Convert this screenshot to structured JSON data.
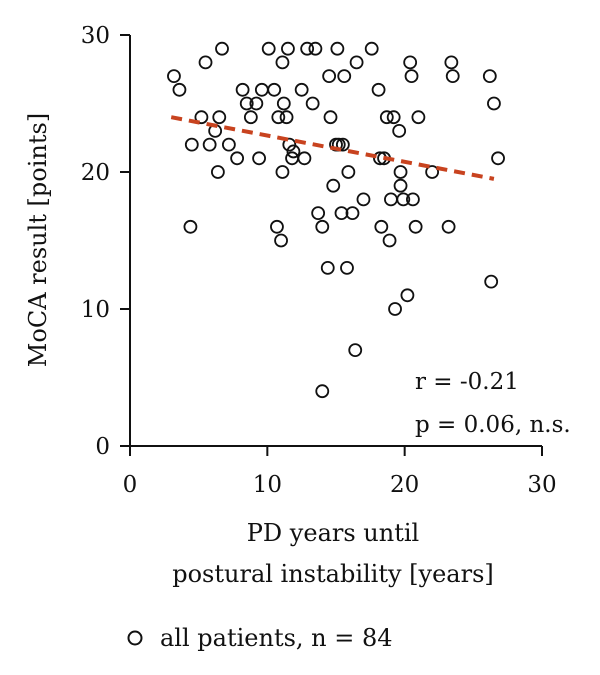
{
  "chart_data": {
    "type": "scatter",
    "title": "",
    "xlabel_lines": [
      "PD years until",
      "postural instability [years]"
    ],
    "ylabel": "MoCA result [points]",
    "xlim": [
      0,
      30
    ],
    "ylim": [
      0,
      30
    ],
    "xticks": [
      0,
      10,
      20,
      30
    ],
    "yticks": [
      0,
      10,
      20,
      30
    ],
    "grid": false,
    "legend": {
      "position": "bottom-left",
      "label": "all patients, n = 84"
    },
    "annotations": {
      "r": "r = -0.21",
      "p": "p = 0.06, n.s."
    },
    "trendline": {
      "x": [
        3,
        26.5
      ],
      "y": [
        24,
        19.5
      ],
      "color": "#c8431f",
      "style": "dashed"
    },
    "marker_color": "#111111",
    "series": [
      {
        "points": [
          [
            3.2,
            27
          ],
          [
            3.6,
            26
          ],
          [
            4.5,
            22
          ],
          [
            4.4,
            16
          ],
          [
            5.2,
            24
          ],
          [
            5.5,
            28
          ],
          [
            5.8,
            22
          ],
          [
            6.2,
            23
          ],
          [
            6.4,
            20
          ],
          [
            6.5,
            24
          ],
          [
            6.7,
            29
          ],
          [
            7.2,
            22
          ],
          [
            7.8,
            21
          ],
          [
            8.2,
            26
          ],
          [
            8.5,
            25
          ],
          [
            8.8,
            24
          ],
          [
            9.2,
            25
          ],
          [
            9.4,
            21
          ],
          [
            9.6,
            26
          ],
          [
            10.1,
            29
          ],
          [
            10.5,
            26
          ],
          [
            10.8,
            24
          ],
          [
            10.7,
            16
          ],
          [
            11.0,
            15
          ],
          [
            11.1,
            20
          ],
          [
            11.1,
            28
          ],
          [
            11.2,
            25
          ],
          [
            11.4,
            24
          ],
          [
            11.5,
            29
          ],
          [
            11.6,
            22
          ],
          [
            11.8,
            21
          ],
          [
            11.9,
            21.5
          ],
          [
            12.5,
            26
          ],
          [
            12.7,
            21
          ],
          [
            12.9,
            29
          ],
          [
            13.3,
            25
          ],
          [
            13.5,
            29
          ],
          [
            13.7,
            17
          ],
          [
            14.0,
            16
          ],
          [
            14.0,
            4
          ],
          [
            14.4,
            13
          ],
          [
            14.5,
            27
          ],
          [
            14.6,
            24
          ],
          [
            14.8,
            19
          ],
          [
            15.0,
            22
          ],
          [
            15.1,
            29
          ],
          [
            15.4,
            17
          ],
          [
            15.5,
            22
          ],
          [
            15.6,
            27
          ],
          [
            15.8,
            13
          ],
          [
            15.9,
            20
          ],
          [
            16.2,
            17
          ],
          [
            16.4,
            7
          ],
          [
            16.5,
            28
          ],
          [
            17.0,
            18
          ],
          [
            17.6,
            29
          ],
          [
            18.1,
            26
          ],
          [
            18.3,
            16
          ],
          [
            18.5,
            21
          ],
          [
            18.7,
            24
          ],
          [
            18.9,
            15
          ],
          [
            19.0,
            18
          ],
          [
            19.2,
            24
          ],
          [
            19.3,
            10
          ],
          [
            19.6,
            23
          ],
          [
            19.7,
            20
          ],
          [
            19.7,
            19
          ],
          [
            19.9,
            18
          ],
          [
            20.2,
            11
          ],
          [
            20.4,
            28
          ],
          [
            20.5,
            27
          ],
          [
            20.6,
            18
          ],
          [
            20.8,
            16
          ],
          [
            21.0,
            24
          ],
          [
            22.0,
            20
          ],
          [
            23.2,
            16
          ],
          [
            23.4,
            28
          ],
          [
            23.5,
            27
          ],
          [
            26.2,
            27
          ],
          [
            26.3,
            12
          ],
          [
            26.5,
            25
          ],
          [
            26.8,
            21
          ],
          [
            18.2,
            21
          ],
          [
            15.2,
            22
          ]
        ]
      }
    ]
  }
}
